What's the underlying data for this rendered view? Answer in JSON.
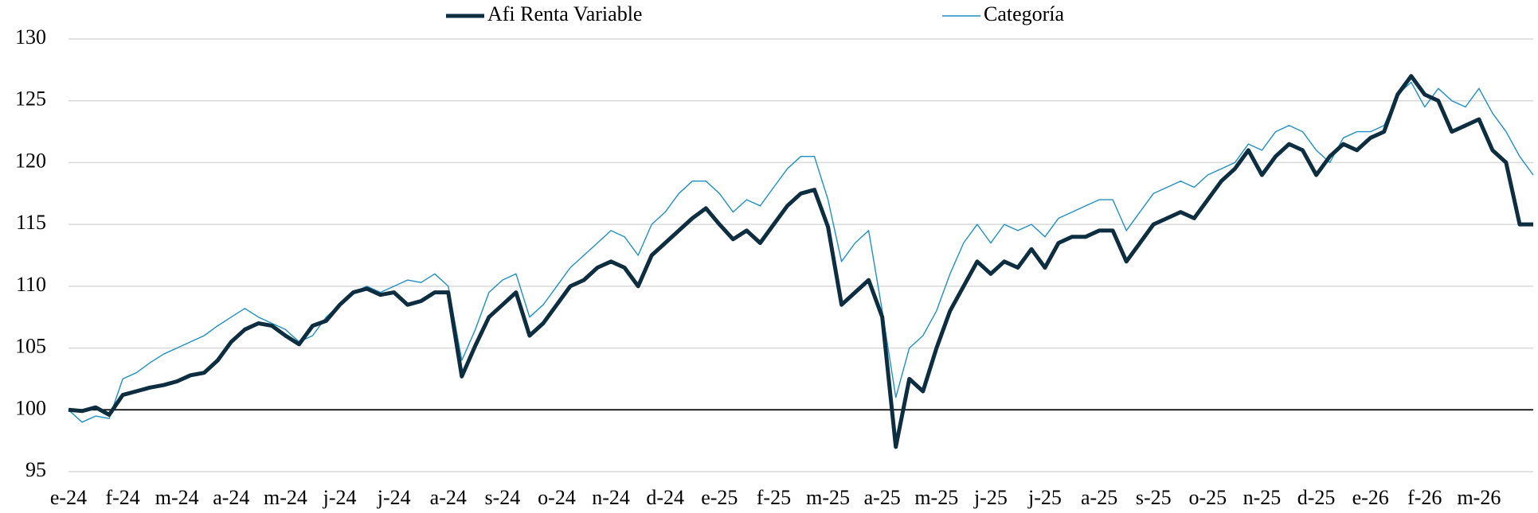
{
  "chart_data": {
    "type": "line",
    "categories": [
      "e-24",
      null,
      null,
      null,
      "f-24",
      null,
      null,
      null,
      "m-24",
      null,
      null,
      null,
      "a-24",
      null,
      null,
      null,
      "m-24",
      null,
      null,
      null,
      "j-24",
      null,
      null,
      null,
      "j-24",
      null,
      null,
      null,
      "a-24",
      null,
      null,
      null,
      "s-24",
      null,
      null,
      null,
      "o-24",
      null,
      null,
      null,
      "n-24",
      null,
      null,
      null,
      "d-24",
      null,
      null,
      null,
      "e-25",
      null,
      null,
      null,
      "f-25",
      null,
      null,
      null,
      "m-25",
      null,
      null,
      null,
      "a-25",
      null,
      null,
      null,
      "m-25",
      null,
      null,
      null,
      "j-25",
      null,
      null,
      null,
      "j-25",
      null,
      null,
      null,
      "a-25",
      null,
      null,
      null,
      "s-25",
      null,
      null,
      null,
      "o-25",
      null,
      null,
      null,
      "n-25",
      null,
      null,
      null,
      "d-25",
      null,
      null,
      null,
      "e-26",
      null,
      null,
      null,
      "f-26",
      null,
      null,
      null,
      "m-26",
      null,
      null,
      null,
      null
    ],
    "series": [
      {
        "name": "Afi Renta Variable",
        "color": "#0d2d40",
        "values": [
          100,
          99.9,
          100.2,
          99.6,
          101.2,
          101.5,
          101.8,
          102,
          102.3,
          102.8,
          103,
          104,
          105.5,
          106.5,
          107,
          106.8,
          106,
          105.3,
          106.8,
          107.2,
          108.5,
          109.5,
          109.8,
          109.3,
          109.5,
          108.5,
          108.8,
          109.5,
          109.5,
          102.7,
          105.2,
          107.5,
          108.5,
          109.5,
          106,
          107,
          108.5,
          110,
          110.5,
          111.5,
          112,
          111.5,
          110,
          112.5,
          113.5,
          114.5,
          115.5,
          116.3,
          115,
          113.8,
          114.5,
          113.5,
          115,
          116.5,
          117.5,
          117.8,
          114.8,
          108.5,
          109.5,
          110.5,
          107.5,
          97,
          102.5,
          101.5,
          105,
          108,
          110,
          112,
          111,
          112,
          111.5,
          113,
          111.5,
          113.5,
          114,
          114,
          114.5,
          114.5,
          112,
          113.5,
          115,
          115.5,
          116,
          115.5,
          117,
          118.5,
          119.5,
          121,
          119,
          120.5,
          121.5,
          121,
          119,
          120.5,
          121.5,
          121,
          122,
          122.5,
          125.5,
          127,
          125.5,
          125,
          122.5,
          123,
          123.5,
          121,
          120,
          115,
          115
        ]
      },
      {
        "name": "Categoría",
        "color": "#1f8fc7",
        "values": [
          100,
          99,
          99.5,
          99.3,
          102.5,
          103,
          103.8,
          104.5,
          105,
          105.5,
          106,
          106.8,
          107.5,
          108.2,
          107.5,
          107,
          106.5,
          105.5,
          106,
          107.5,
          108.5,
          109.5,
          110,
          109.5,
          110,
          110.5,
          110.3,
          111,
          110,
          104,
          106.5,
          109.5,
          110.5,
          111,
          107.5,
          108.5,
          110,
          111.5,
          112.5,
          113.5,
          114.5,
          114,
          112.5,
          115,
          116,
          117.5,
          118.5,
          118.5,
          117.5,
          116,
          117,
          116.5,
          118,
          119.5,
          120.5,
          120.5,
          117,
          112,
          113.5,
          114.5,
          108,
          101,
          105,
          106,
          108,
          111,
          113.5,
          115,
          113.5,
          115,
          114.5,
          115,
          114,
          115.5,
          116,
          116.5,
          117,
          117,
          114.5,
          116,
          117.5,
          118,
          118.5,
          118,
          119,
          119.5,
          120,
          121.5,
          121,
          122.5,
          123,
          122.5,
          121,
          120,
          122,
          122.5,
          122.5,
          123,
          125.5,
          126.5,
          124.5,
          126,
          125,
          124.5,
          126,
          124,
          122.5,
          120.5,
          119
        ]
      }
    ],
    "ylim": [
      95,
      130
    ],
    "yticks": [
      95,
      100,
      105,
      110,
      115,
      120,
      125,
      130
    ],
    "grid": true,
    "x_axis_crosses": 100
  }
}
